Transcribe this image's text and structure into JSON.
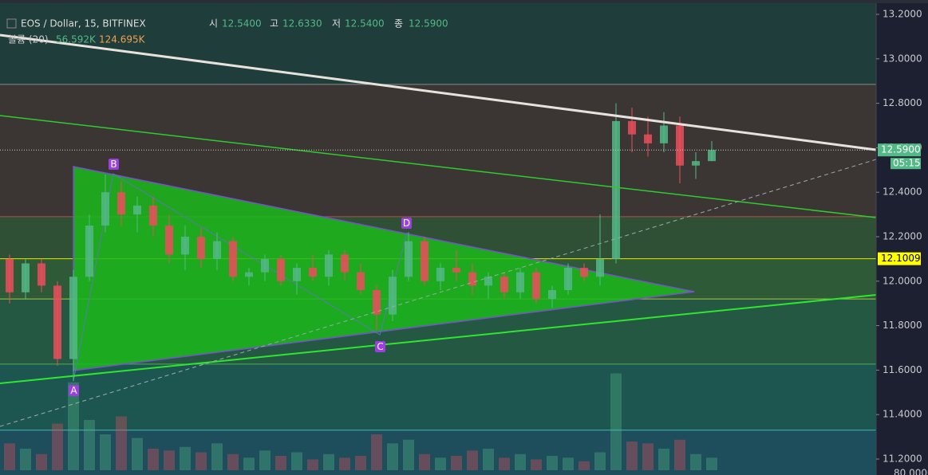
{
  "chart_data": {
    "type": "candlestick",
    "header": {
      "symbol": "EOS / Dollar, 15, BITFINEX",
      "open_label": "시",
      "open": "12.5400",
      "high_label": "고",
      "high": "12.6330",
      "low_label": "저",
      "low": "12.5400",
      "close_label": "종",
      "close": "12.5900",
      "volume_label": "볼륨 (20)",
      "volume_a": "56.592K",
      "volume_b": "124.695K"
    },
    "ylim": [
      11.2,
      13.2
    ],
    "yticks": [
      {
        "value": 11.2,
        "label": "11.2000"
      },
      {
        "value": 11.4,
        "label": "11.4000"
      },
      {
        "value": 11.6,
        "label": "11.6000"
      },
      {
        "value": 11.8,
        "label": "11.8000"
      },
      {
        "value": 12.0,
        "label": "12.0000"
      },
      {
        "value": 12.2,
        "label": "12.2000"
      },
      {
        "value": 12.4,
        "label": "12.4000"
      },
      {
        "value": 12.6,
        "label": "12.6000"
      },
      {
        "value": 12.8,
        "label": "12.8000"
      },
      {
        "value": 13.0,
        "label": "13.0000"
      },
      {
        "value": 13.2,
        "label": "13.2000"
      }
    ],
    "bottom_label": "80.0000",
    "up_color": "#53b987",
    "down_color": "#eb4d5c",
    "open": [
      12.1,
      11.95,
      12.08,
      11.98,
      11.65,
      12.02,
      12.25,
      12.4,
      12.3,
      12.34,
      12.25,
      12.12,
      12.2,
      12.1,
      12.18,
      12.02,
      12.04,
      12.1,
      12.0,
      12.06,
      12.02,
      12.12,
      12.04,
      11.96,
      11.85,
      12.02,
      12.18,
      12.0,
      12.06,
      12.04,
      11.98,
      12.02,
      11.95,
      12.04,
      11.92,
      11.96,
      12.06,
      12.02,
      12.1,
      12.72,
      12.66,
      12.62,
      12.7,
      12.52,
      12.54
    ],
    "high": [
      12.12,
      12.1,
      12.1,
      12.0,
      12.05,
      12.3,
      12.48,
      12.45,
      12.38,
      12.38,
      12.3,
      12.25,
      12.24,
      12.22,
      12.2,
      12.06,
      12.12,
      12.12,
      12.08,
      12.12,
      12.14,
      12.14,
      12.08,
      11.98,
      12.05,
      12.22,
      12.2,
      12.08,
      12.14,
      12.08,
      12.04,
      12.04,
      12.06,
      12.06,
      11.98,
      12.08,
      12.08,
      12.3,
      12.8,
      12.78,
      12.74,
      12.76,
      12.74,
      12.58,
      12.63
    ],
    "low": [
      11.9,
      11.92,
      11.95,
      11.62,
      11.55,
      12.0,
      12.22,
      12.25,
      12.22,
      12.2,
      12.08,
      12.05,
      12.06,
      12.05,
      12.0,
      11.98,
      12.0,
      11.98,
      11.94,
      12.0,
      11.98,
      12.0,
      11.94,
      11.78,
      11.82,
      12.0,
      11.98,
      11.96,
      12.0,
      11.94,
      11.92,
      11.92,
      11.92,
      11.9,
      11.88,
      11.94,
      12.0,
      11.98,
      12.08,
      12.58,
      12.56,
      12.58,
      12.44,
      12.46,
      12.54
    ],
    "close": [
      11.95,
      12.08,
      11.98,
      11.65,
      12.02,
      12.25,
      12.4,
      12.3,
      12.34,
      12.25,
      12.12,
      12.2,
      12.1,
      12.18,
      12.02,
      12.04,
      12.1,
      12.0,
      12.06,
      12.02,
      12.12,
      12.04,
      11.96,
      11.85,
      12.02,
      12.18,
      12.0,
      12.06,
      12.04,
      11.98,
      12.02,
      11.95,
      12.04,
      11.92,
      11.96,
      12.06,
      12.02,
      12.1,
      12.72,
      12.66,
      12.62,
      12.7,
      12.52,
      12.54,
      12.59
    ],
    "volume": [
      150,
      120,
      90,
      260,
      490,
      280,
      200,
      300,
      180,
      120,
      110,
      130,
      100,
      150,
      90,
      70,
      110,
      80,
      100,
      60,
      90,
      70,
      80,
      200,
      150,
      170,
      90,
      70,
      80,
      110,
      120,
      70,
      90,
      60,
      80,
      70,
      50,
      100,
      540,
      160,
      150,
      120,
      170,
      90,
      70
    ],
    "vlim": [
      0,
      800
    ],
    "levels": [
      {
        "value": 12.885,
        "color": "#8a8a8a",
        "fill": "#3b3634"
      },
      {
        "value": 12.29,
        "color": "#b0504a",
        "fill": "#2f5034"
      },
      {
        "value": 12.1009,
        "color": "#e6e600",
        "fill": "#2e5a38"
      },
      {
        "value": 11.92,
        "color": "#a8c840",
        "fill": "#255843"
      },
      {
        "value": 11.627,
        "color": "#4caf50",
        "fill": "#1d5651"
      },
      {
        "value": 11.33,
        "color": "#3fb8b0",
        "fill": "#1e4d5c"
      }
    ],
    "top_fill": "#1f3d3a",
    "last_price": {
      "value": 12.59,
      "label": "12.5900"
    },
    "countdown": "05:15",
    "level_badge": {
      "value": 12.1009,
      "label": "12.1009"
    },
    "points": {
      "a": "A",
      "b": "B",
      "c": "C",
      "d": "D"
    }
  }
}
